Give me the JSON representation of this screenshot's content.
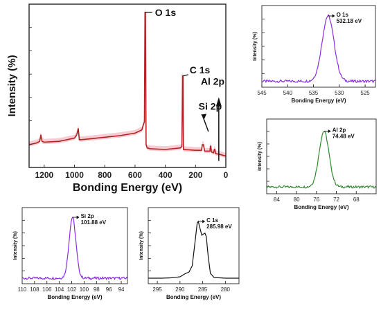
{
  "chart_data": [
    {
      "id": "survey",
      "type": "line",
      "xlabel": "Bonding Energy (eV)",
      "ylabel": "Intensity (%)",
      "xlim": [
        1300,
        0
      ],
      "ylim": [
        0,
        100
      ],
      "xticks": [
        1200,
        1000,
        800,
        600,
        400,
        200,
        0
      ],
      "x_reversed": true,
      "y_tick_labels": false,
      "line_color": "#b22222",
      "fill_color": "#f7c6cf",
      "points": [
        [
          1300,
          14
        ],
        [
          1250,
          15
        ],
        [
          1230,
          16
        ],
        [
          1222,
          20
        ],
        [
          1215,
          16
        ],
        [
          1200,
          15.5
        ],
        [
          1100,
          16
        ],
        [
          1000,
          18
        ],
        [
          985,
          20
        ],
        [
          975,
          24
        ],
        [
          968,
          17
        ],
        [
          960,
          17
        ],
        [
          900,
          17.5
        ],
        [
          800,
          18.5
        ],
        [
          700,
          19.5
        ],
        [
          600,
          21
        ],
        [
          555,
          23
        ],
        [
          545,
          26
        ],
        [
          538,
          28
        ],
        [
          534,
          95
        ],
        [
          531,
          95
        ],
        [
          527,
          14
        ],
        [
          520,
          12
        ],
        [
          500,
          11.5
        ],
        [
          400,
          11
        ],
        [
          300,
          12
        ],
        [
          290,
          13
        ],
        [
          286,
          56
        ],
        [
          283,
          56
        ],
        [
          280,
          11
        ],
        [
          200,
          10.5
        ],
        [
          160,
          10.5
        ],
        [
          155,
          14
        ],
        [
          148,
          14
        ],
        [
          140,
          10
        ],
        [
          105,
          10
        ],
        [
          102,
          13
        ],
        [
          99,
          13
        ],
        [
          95,
          9.5
        ],
        [
          80,
          9
        ],
        [
          76,
          11
        ],
        [
          72,
          11
        ],
        [
          68,
          8.5
        ],
        [
          40,
          8
        ],
        [
          20,
          7.5
        ],
        [
          0,
          7
        ]
      ],
      "annotations": [
        {
          "text": "O 1s",
          "x": 532,
          "y": 95
        },
        {
          "text": "C 1s",
          "x": 285,
          "y": 56
        },
        {
          "text": "Al 2p",
          "x": 74,
          "y": 16
        },
        {
          "text": "Si 2p",
          "x": 102,
          "y": 15
        }
      ]
    },
    {
      "id": "o1s",
      "type": "line",
      "xlabel": "Bonding Energy (eV)",
      "ylabel": "Intensity (%)",
      "xlim": [
        545,
        523
      ],
      "ylim": [
        0,
        110
      ],
      "xticks": [
        545,
        540,
        535,
        530,
        525
      ],
      "x_reversed": true,
      "y_tick_labels": false,
      "line_color": "#8a2be2",
      "peak": {
        "center": 532.18,
        "sigma": 1.15,
        "height": 88,
        "baseline": 8
      },
      "points": [],
      "annotations": [
        {
          "text": "O 1s",
          "subtext": "532.18 eV",
          "x": 532.18
        }
      ]
    },
    {
      "id": "al2p",
      "type": "line",
      "xlabel": "Bonding Energy (eV)",
      "ylabel": "Intensity (%)",
      "xlim": [
        86,
        64
      ],
      "ylim": [
        0,
        110
      ],
      "xticks": [
        84,
        80,
        76,
        72,
        68
      ],
      "x_reversed": true,
      "y_tick_labels": false,
      "line_color": "#2e8b2e",
      "peak": {
        "center": 74.48,
        "sigma": 1.0,
        "height": 82,
        "baseline": 10
      },
      "points": [],
      "annotations": [
        {
          "text": "Al 2p",
          "subtext": "74.48 eV",
          "x": 74.48
        }
      ]
    },
    {
      "id": "si2p",
      "type": "line",
      "xlabel": "Bonding Energy (eV)",
      "ylabel": "Intensity (%)",
      "xlim": [
        110,
        93
      ],
      "ylim": [
        0,
        110
      ],
      "xticks": [
        110,
        108,
        106,
        104,
        102,
        100,
        98,
        96,
        94
      ],
      "x_reversed": true,
      "y_tick_labels": false,
      "line_color": "#8a2be2",
      "peak": {
        "center": 101.88,
        "sigma": 0.55,
        "height": 88,
        "baseline": 8
      },
      "points": [],
      "annotations": [
        {
          "text": "Si 2p",
          "subtext": "101.88 eV",
          "x": 101.88
        }
      ]
    },
    {
      "id": "c1s",
      "type": "line",
      "xlabel": "Bonding Energy (eV)",
      "ylabel": "Intensity (%)",
      "xlim": [
        297,
        277
      ],
      "ylim": [
        0,
        110
      ],
      "xticks": [
        295,
        290,
        285,
        280
      ],
      "x_reversed": true,
      "y_tick_labels": false,
      "line_color": "#111111",
      "points": [
        [
          297,
          8
        ],
        [
          294,
          8
        ],
        [
          292,
          8.5
        ],
        [
          290,
          10
        ],
        [
          289,
          14
        ],
        [
          288,
          17
        ],
        [
          287.3,
          26
        ],
        [
          286.6,
          65
        ],
        [
          286.2,
          88
        ],
        [
          285.98,
          90
        ],
        [
          285.6,
          80
        ],
        [
          285.2,
          70
        ],
        [
          284.8,
          72
        ],
        [
          284.5,
          73
        ],
        [
          284.2,
          68
        ],
        [
          283.8,
          40
        ],
        [
          283.3,
          15
        ],
        [
          282.5,
          9
        ],
        [
          280,
          8
        ],
        [
          277,
          8
        ]
      ],
      "annotations": [
        {
          "text": "C 1s",
          "subtext": "285.98 eV",
          "x": 285.98
        }
      ]
    }
  ]
}
